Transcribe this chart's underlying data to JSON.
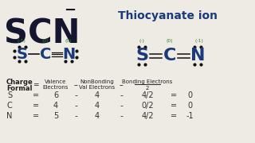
{
  "bg_color": "#eeeae4",
  "title_text": "SCN",
  "title_superscript": "−",
  "subtitle_text": "Thiocyanate ion",
  "title_color": "#151530",
  "subtitle_color": "#1a3a7a",
  "lewis_color": "#1a3a7a",
  "dot_color": "#111111",
  "charge_color": "#2a8a2a",
  "table_header_color": "#222222",
  "table_data_color": "#333333",
  "lewis1": {
    "S_charge": "(-1)",
    "C_charge": "(0)",
    "N_charge": "(0)"
  },
  "lewis2": {
    "S_charge": "(-)",
    "C_charge": "(0)",
    "N_charge": "(-1)"
  },
  "table_rows": [
    [
      "S",
      "=",
      "6",
      "-",
      "4",
      "-",
      "4/2",
      "=",
      "0"
    ],
    [
      "C",
      "=",
      "4",
      "-",
      "4",
      "-",
      "0/2",
      "=",
      "0"
    ],
    [
      "N",
      "=",
      "5",
      "-",
      "4",
      "-",
      "4/2",
      "=",
      "-1"
    ]
  ]
}
